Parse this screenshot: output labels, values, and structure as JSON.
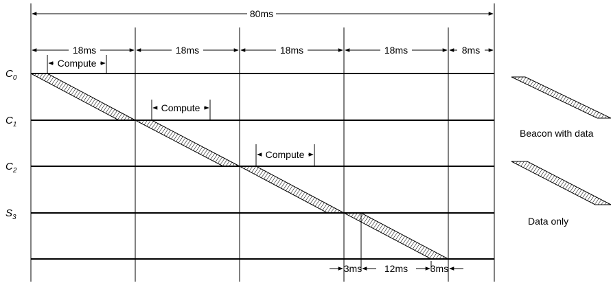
{
  "total": {
    "label": "80ms"
  },
  "segments": [
    {
      "label": "18ms"
    },
    {
      "label": "18ms"
    },
    {
      "label": "18ms"
    },
    {
      "label": "18ms"
    },
    {
      "label": "8ms"
    }
  ],
  "compute": [
    {
      "label": "Compute"
    },
    {
      "label": "Compute"
    },
    {
      "label": "Compute"
    }
  ],
  "rows": [
    {
      "base": "C",
      "sub": "0"
    },
    {
      "base": "C",
      "sub": "1"
    },
    {
      "base": "C",
      "sub": "2"
    },
    {
      "base": "S",
      "sub": "3"
    }
  ],
  "bottom": [
    {
      "label": "3ms"
    },
    {
      "label": "12ms"
    },
    {
      "label": "3ms"
    }
  ],
  "legend": {
    "beacon_with_data": "Beacon with data",
    "data_only": "Data only"
  }
}
